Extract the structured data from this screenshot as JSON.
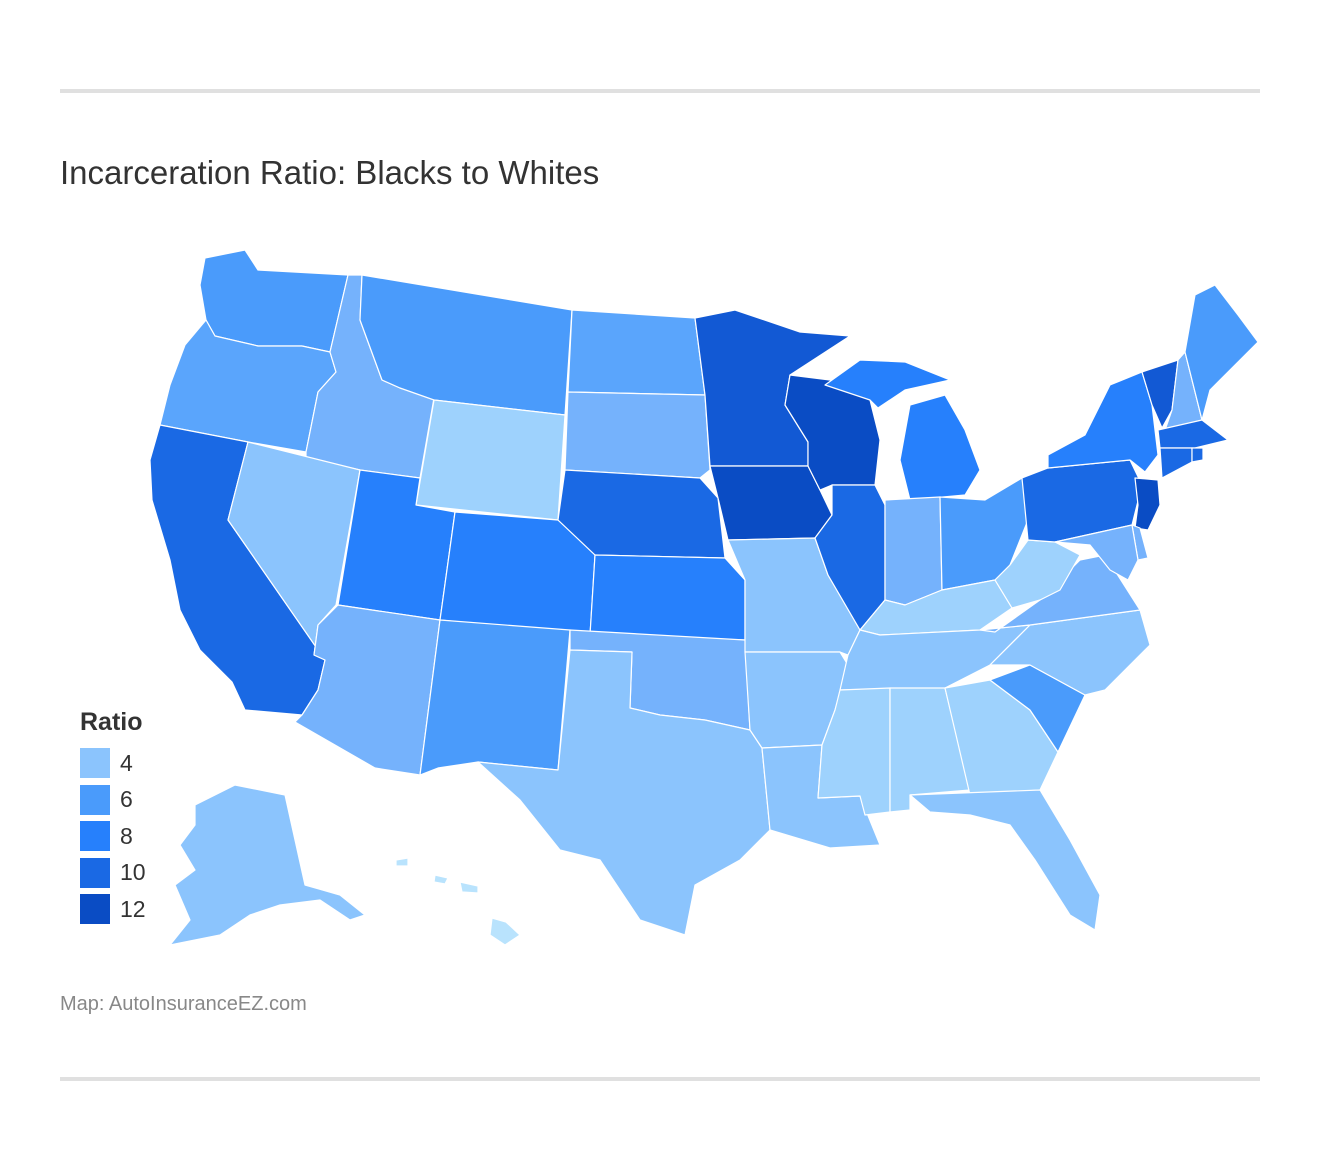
{
  "title": "Incarceration Ratio: Blacks to Whites",
  "source": "Map: AutoInsuranceEZ.com",
  "legend": {
    "title": "Ratio",
    "items": [
      {
        "label": "4",
        "color": "#8bc4fd"
      },
      {
        "label": "6",
        "color": "#4a9bfb"
      },
      {
        "label": "8",
        "color": "#2680fc"
      },
      {
        "label": "10",
        "color": "#1a69e4"
      },
      {
        "label": "12",
        "color": "#0a4cc4"
      }
    ]
  },
  "colors": {
    "very_light": "#b9e3fd",
    "light_4": "#9ed2fd",
    "ratio_4": "#8bc4fd",
    "ratio_5": "#75b2fc",
    "ratio_6": "#4a9bfb",
    "ratio_8": "#2680fc",
    "ratio_10": "#1a69e4",
    "ratio_11": "#1259d4",
    "ratio_12": "#0a4cc4"
  },
  "regions": [
    {
      "name": "Washington",
      "color": "#4a9bfb"
    },
    {
      "name": "Oregon",
      "color": "#5aa5fc"
    },
    {
      "name": "California",
      "color": "#1a69e4"
    },
    {
      "name": "Idaho",
      "color": "#75b2fc"
    },
    {
      "name": "Nevada",
      "color": "#8bc4fd"
    },
    {
      "name": "Montana",
      "color": "#4a9bfb"
    },
    {
      "name": "Wyoming",
      "color": "#9ed2fd"
    },
    {
      "name": "Utah",
      "color": "#2680fc"
    },
    {
      "name": "Arizona",
      "color": "#75b2fc"
    },
    {
      "name": "Colorado",
      "color": "#2680fc"
    },
    {
      "name": "New Mexico",
      "color": "#4a9bfb"
    },
    {
      "name": "North Dakota",
      "color": "#5aa5fc"
    },
    {
      "name": "South Dakota",
      "color": "#75b2fc"
    },
    {
      "name": "Nebraska",
      "color": "#1a69e4"
    },
    {
      "name": "Kansas",
      "color": "#2680fc"
    },
    {
      "name": "Oklahoma",
      "color": "#75b2fc"
    },
    {
      "name": "Texas",
      "color": "#8bc4fd"
    },
    {
      "name": "Minnesota",
      "color": "#1259d4"
    },
    {
      "name": "Iowa",
      "color": "#0a4cc4"
    },
    {
      "name": "Missouri",
      "color": "#8bc4fd"
    },
    {
      "name": "Arkansas",
      "color": "#8bc4fd"
    },
    {
      "name": "Louisiana",
      "color": "#8bc4fd"
    },
    {
      "name": "Wisconsin",
      "color": "#0a4cc4"
    },
    {
      "name": "Illinois",
      "color": "#1a69e4"
    },
    {
      "name": "Michigan",
      "color": "#2680fc"
    },
    {
      "name": "Indiana",
      "color": "#75b2fc"
    },
    {
      "name": "Ohio",
      "color": "#4a9bfb"
    },
    {
      "name": "Kentucky",
      "color": "#9ed2fd"
    },
    {
      "name": "Tennessee",
      "color": "#8bc4fd"
    },
    {
      "name": "Mississippi",
      "color": "#9ed2fd"
    },
    {
      "name": "Alabama",
      "color": "#9ed2fd"
    },
    {
      "name": "Georgia",
      "color": "#9ed2fd"
    },
    {
      "name": "Florida",
      "color": "#8bc4fd"
    },
    {
      "name": "South Carolina",
      "color": "#4a9bfb"
    },
    {
      "name": "North Carolina",
      "color": "#8bc4fd"
    },
    {
      "name": "Virginia",
      "color": "#75b2fc"
    },
    {
      "name": "West Virginia",
      "color": "#9ed2fd"
    },
    {
      "name": "Pennsylvania",
      "color": "#1a69e4"
    },
    {
      "name": "New York",
      "color": "#2680fc"
    },
    {
      "name": "Vermont",
      "color": "#1259d4"
    },
    {
      "name": "New Hampshire",
      "color": "#75b2fc"
    },
    {
      "name": "Maine",
      "color": "#4a9bfb"
    },
    {
      "name": "Massachusetts",
      "color": "#1a69e4"
    },
    {
      "name": "Connecticut",
      "color": "#1a69e4"
    },
    {
      "name": "Rhode Island",
      "color": "#1a69e4"
    },
    {
      "name": "New Jersey",
      "color": "#0a4cc4"
    },
    {
      "name": "Delaware",
      "color": "#75b2fc"
    },
    {
      "name": "Maryland",
      "color": "#75b2fc"
    },
    {
      "name": "Alaska",
      "color": "#8bc4fd"
    },
    {
      "name": "Hawaii",
      "color": "#b9e3fd"
    }
  ]
}
